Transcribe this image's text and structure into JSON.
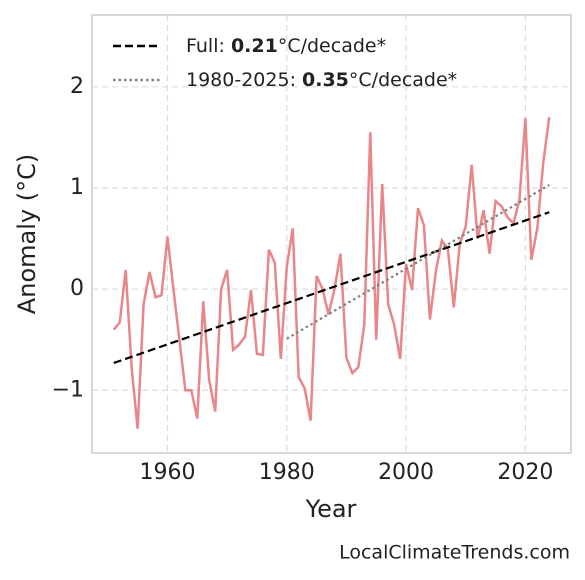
{
  "chart_data": {
    "type": "line",
    "xlabel": "Year",
    "ylabel": "Anomaly (°C)",
    "source": "LocalClimateTrends.com",
    "xlim": [
      1947.35,
      2027.65
    ],
    "ylim": [
      -1.62,
      2.71
    ],
    "xticks": [
      1960,
      1980,
      2000,
      2020
    ],
    "yticks": [
      {
        "value": -1,
        "label": "−1"
      },
      0,
      1,
      2
    ],
    "grid": true,
    "legend": "upper left",
    "series": [
      {
        "color": "#e8868a",
        "style": "solid",
        "x": [
          1951,
          1952,
          1953,
          1954,
          1955,
          1956,
          1957,
          1958,
          1959,
          1960,
          1961,
          1962,
          1963,
          1964,
          1965,
          1966,
          1967,
          1968,
          1969,
          1970,
          1971,
          1972,
          1973,
          1974,
          1975,
          1976,
          1977,
          1978,
          1979,
          1980,
          1981,
          1982,
          1983,
          1984,
          1985,
          1986,
          1987,
          1988,
          1989,
          1990,
          1991,
          1992,
          1993,
          1994,
          1995,
          1996,
          1997,
          1998,
          1999,
          2000,
          2001,
          2002,
          2003,
          2004,
          2005,
          2006,
          2007,
          2008,
          2009,
          2010,
          2011,
          2012,
          2013,
          2014,
          2015,
          2016,
          2017,
          2018,
          2019,
          2020,
          2021,
          2022,
          2023,
          2024
        ],
        "values": [
          -0.4,
          -0.33,
          0.19,
          -0.78,
          -1.38,
          -0.15,
          0.17,
          -0.08,
          -0.06,
          0.52,
          0.0,
          -0.5,
          -1.0,
          -1.0,
          -1.28,
          -0.12,
          -0.9,
          -1.21,
          0.0,
          0.19,
          -0.6,
          -0.55,
          -0.47,
          -0.01,
          -0.64,
          -0.65,
          0.39,
          0.26,
          -0.69,
          0.22,
          0.6,
          -0.87,
          -0.98,
          -1.3,
          0.13,
          0.0,
          -0.25,
          0.0,
          0.35,
          -0.68,
          -0.83,
          -0.77,
          -0.35,
          1.55,
          -0.5,
          1.04,
          -0.15,
          -0.35,
          -0.69,
          0.25,
          -0.01,
          0.8,
          0.63,
          -0.3,
          0.18,
          0.48,
          0.4,
          -0.18,
          0.45,
          0.62,
          1.23,
          0.5,
          0.78,
          0.35,
          0.87,
          0.82,
          0.71,
          0.65,
          0.88,
          1.69,
          0.29,
          0.6,
          1.25,
          1.7
        ]
      },
      {
        "name": [
          "Full: ",
          "0.21",
          "°C/decade*"
        ],
        "color": "#000000",
        "style": "dashed",
        "x": [
          1951,
          2024
        ],
        "values": [
          -0.73,
          0.76
        ]
      },
      {
        "name": [
          "1980-2025: ",
          "0.35",
          "°C/decade*"
        ],
        "color": "#808080",
        "style": "dotted",
        "x": [
          1980,
          2024
        ],
        "values": [
          -0.49,
          1.03
        ]
      }
    ]
  }
}
